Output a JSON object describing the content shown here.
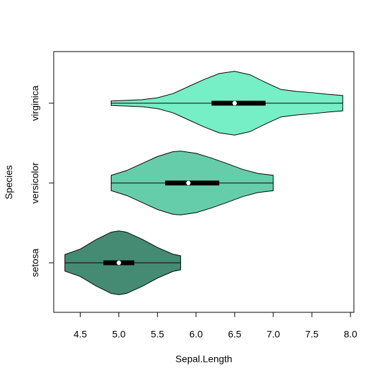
{
  "chart_data": {
    "type": "violin",
    "xlabel": "Sepal.Length",
    "ylabel": "Species",
    "categories": [
      "setosa",
      "versicolor",
      "virginica"
    ],
    "xlim": [
      4.156,
      8.044
    ],
    "xticks": [
      4.5,
      {
        "value": 5,
        "label": "5.0"
      },
      5.5,
      {
        "value": 6,
        "label": "6.0"
      },
      6.5,
      {
        "value": 7,
        "label": "7.0"
      },
      7.5,
      {
        "value": 8,
        "label": "8.0"
      }
    ],
    "series": [
      {
        "color": "#458b74",
        "min": 4.3,
        "q1": 4.8,
        "median": 5.0,
        "q3": 5.2,
        "max": 5.8,
        "density": {
          "x": [
            4.3,
            4.5,
            4.7,
            4.9,
            5.0,
            5.1,
            5.3,
            5.5,
            5.7,
            5.8
          ],
          "values": [
            0.26,
            0.43,
            0.72,
            0.96,
            1.0,
            0.96,
            0.74,
            0.48,
            0.27,
            0.22
          ]
        }
      },
      {
        "color": "#66cdaa",
        "min": 4.9,
        "q1": 5.6,
        "median": 5.9,
        "q3": 6.3,
        "max": 7.0,
        "density": {
          "x": [
            4.9,
            5.1,
            5.3,
            5.5,
            5.7,
            5.8,
            6.0,
            6.2,
            6.4,
            6.6,
            6.8,
            7.0
          ],
          "values": [
            0.24,
            0.39,
            0.61,
            0.83,
            0.98,
            1.0,
            0.93,
            0.78,
            0.61,
            0.43,
            0.3,
            0.24
          ]
        }
      },
      {
        "color": "#76eec6",
        "min": 4.9,
        "q1": 6.2,
        "median": 6.5,
        "q3": 6.9,
        "max": 7.9,
        "density": {
          "x": [
            4.9,
            5.1,
            5.3,
            5.5,
            5.7,
            5.9,
            6.1,
            6.3,
            6.5,
            6.7,
            6.9,
            7.1,
            7.3,
            7.5,
            7.7,
            7.9
          ],
          "values": [
            0.07,
            0.09,
            0.11,
            0.17,
            0.3,
            0.52,
            0.74,
            0.93,
            1.0,
            0.89,
            0.65,
            0.43,
            0.37,
            0.33,
            0.28,
            0.24
          ]
        }
      }
    ]
  }
}
